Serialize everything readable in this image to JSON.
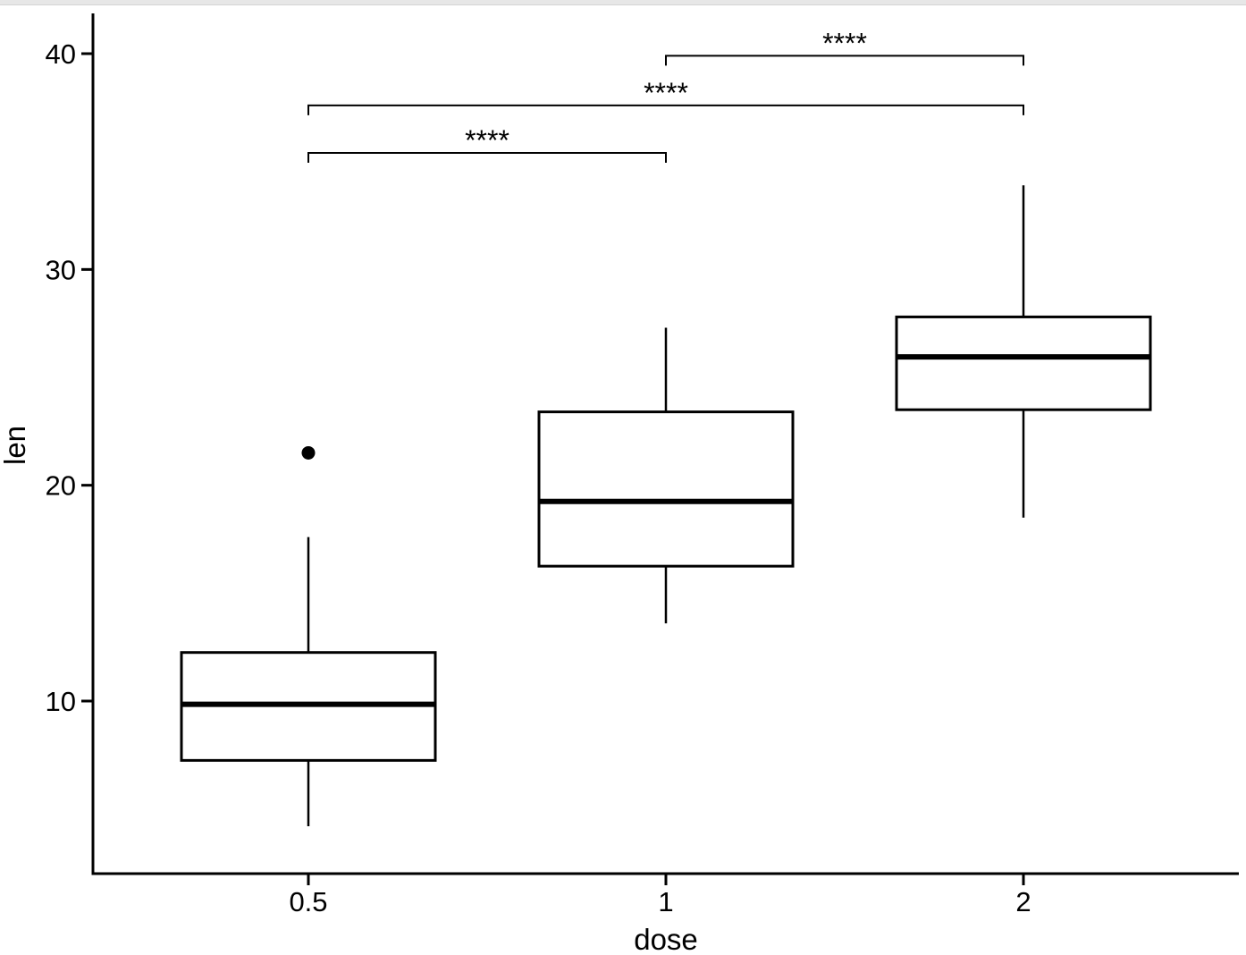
{
  "chart_data": {
    "type": "boxplot",
    "title": "",
    "xlabel": "dose",
    "ylabel": "len",
    "categories": [
      "0.5",
      "1",
      "2"
    ],
    "y_ticks": [
      10,
      20,
      30,
      40
    ],
    "ylim": [
      2,
      42
    ],
    "grid": "off",
    "legend": "none",
    "groups": [
      {
        "dose": "0.5",
        "whisker_low": 4.2,
        "q1": 7.25,
        "median": 9.85,
        "q3": 12.25,
        "whisker_high": 17.6,
        "outliers": [
          21.5
        ]
      },
      {
        "dose": "1",
        "whisker_low": 13.6,
        "q1": 16.25,
        "median": 19.25,
        "q3": 23.4,
        "whisker_high": 27.3,
        "outliers": []
      },
      {
        "dose": "2",
        "whisker_low": 18.5,
        "q1": 23.5,
        "median": 25.95,
        "q3": 27.8,
        "whisker_high": 33.9,
        "outliers": []
      }
    ],
    "significance_brackets": [
      {
        "group1": "0.5",
        "group2": "1",
        "label": "****",
        "y_value": 35.4
      },
      {
        "group1": "0.5",
        "group2": "2",
        "label": "****",
        "y_value": 37.6
      },
      {
        "group1": "1",
        "group2": "2",
        "label": "****",
        "y_value": 39.9
      }
    ],
    "style": {
      "line_color": "#000000",
      "box_fill": "#ffffff",
      "background": "#ffffff",
      "outlier_color": "#000000"
    }
  }
}
